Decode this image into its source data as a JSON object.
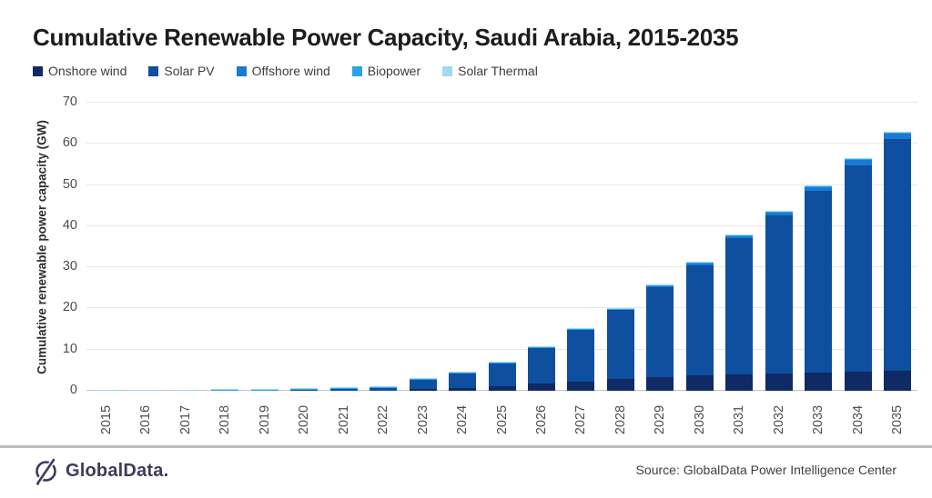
{
  "title": "Cumulative Renewable Power Capacity, Saudi Arabia, 2015-2035",
  "footer": {
    "brand": "GlobalData.",
    "source": "Source: GlobalData Power Intelligence Center"
  },
  "colors": {
    "grid": "#e7e7e7",
    "axis_line": "#c4c4c4",
    "tick_text": "#4d4d4d",
    "title_text": "#1c1c1c",
    "footer_divider": "#bdbdbd",
    "brand": "#3d3b5c",
    "source_text": "#3f3f3f"
  },
  "chart_data": {
    "type": "bar",
    "stacked": true,
    "title": "Cumulative Renewable Power Capacity, Saudi Arabia, 2015-2035",
    "xlabel": "",
    "ylabel": "Cumulative renewable power capacity (GW)",
    "ylim": [
      0,
      70
    ],
    "ytick_step": 10,
    "grid": true,
    "legend_position": "top-left",
    "categories": [
      "2015",
      "2016",
      "2017",
      "2018",
      "2019",
      "2020",
      "2021",
      "2022",
      "2023",
      "2024",
      "2025",
      "2026",
      "2027",
      "2028",
      "2029",
      "2030",
      "2031",
      "2032",
      "2033",
      "2034",
      "2035"
    ],
    "series": [
      {
        "name": "Onshore wind",
        "color": "#0f2a64",
        "values": [
          0,
          0,
          0,
          0,
          0,
          0,
          0,
          0,
          0.4,
          0.6,
          1.0,
          1.7,
          2.2,
          2.8,
          3.3,
          3.7,
          4.0,
          4.2,
          4.5,
          4.7,
          4.8
        ]
      },
      {
        "name": "Solar PV",
        "color": "#0e4f9f",
        "values": [
          0,
          0,
          0,
          0,
          0,
          0.25,
          0.55,
          0.6,
          2.35,
          3.55,
          5.55,
          8.65,
          12.65,
          16.75,
          21.85,
          26.85,
          33.05,
          38.45,
          44.15,
          50.15,
          56.35
        ]
      },
      {
        "name": "Offshore wind",
        "color": "#1a7ad2",
        "values": [
          0,
          0,
          0,
          0,
          0,
          0,
          0,
          0,
          0,
          0,
          0,
          0,
          0,
          0,
          0.1,
          0.4,
          0.5,
          0.7,
          0.9,
          1.2,
          1.4
        ]
      },
      {
        "name": "Biopower",
        "color": "#2aa3e8",
        "values": [
          0,
          0,
          0,
          0.05,
          0.1,
          0.1,
          0.1,
          0.1,
          0.1,
          0.1,
          0.1,
          0.1,
          0.1,
          0.1,
          0.1,
          0.1,
          0.1,
          0.1,
          0.1,
          0.1,
          0.1
        ]
      },
      {
        "name": "Solar Thermal",
        "color": "#9fd9f2",
        "values": [
          0.15,
          0.15,
          0.15,
          0.15,
          0.15,
          0.15,
          0.15,
          0.15,
          0.15,
          0.15,
          0.15,
          0.15,
          0.15,
          0.15,
          0.15,
          0.15,
          0.15,
          0.15,
          0.15,
          0.15,
          0.15
        ]
      }
    ],
    "totals_estimated_gw": [
      0.15,
      0.15,
      0.15,
      0.2,
      0.25,
      0.5,
      0.8,
      0.85,
      3.0,
      4.4,
      6.8,
      10.6,
      15.1,
      19.8,
      25.5,
      31.2,
      37.8,
      43.6,
      49.8,
      56.3,
      62.8
    ]
  }
}
